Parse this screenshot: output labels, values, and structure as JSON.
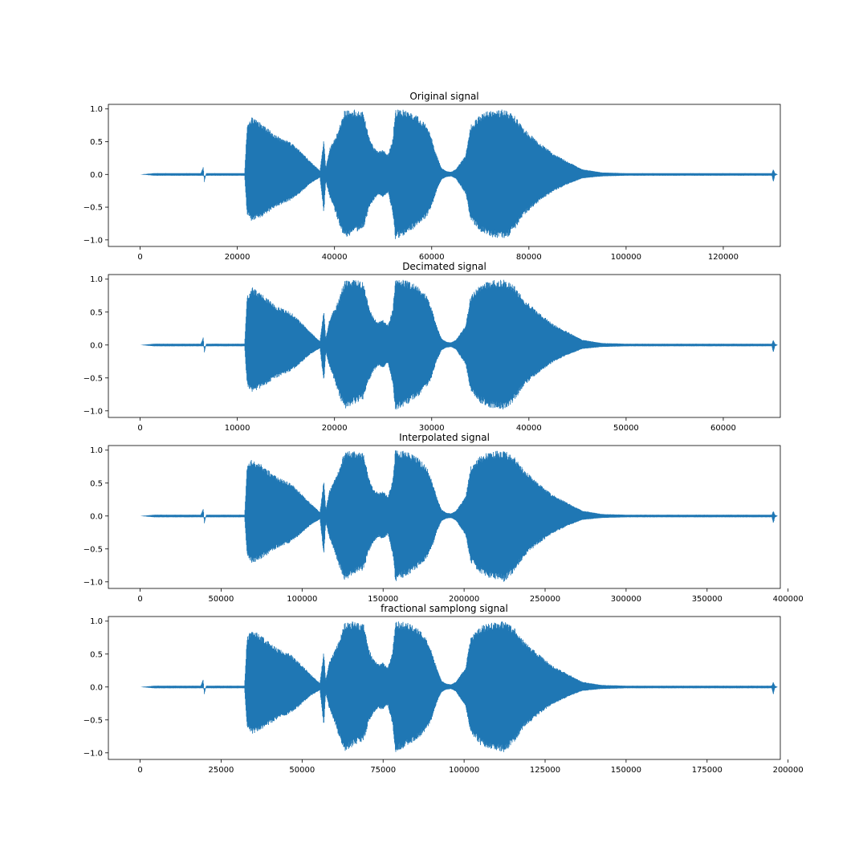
{
  "figure": {
    "background": "#ffffff"
  },
  "chart_data": [
    {
      "type": "line",
      "title": "Original signal",
      "xlabel": "",
      "ylabel": "",
      "xlim": [
        -6534,
        131734
      ],
      "ylim": [
        -1.1,
        1.07
      ],
      "xticks": [
        0,
        20000,
        40000,
        60000,
        80000,
        100000,
        120000
      ],
      "yticks": [
        -1.0,
        -0.5,
        0.0,
        0.5,
        1.0
      ],
      "ytick_labels": [
        "−1.0",
        "−0.5",
        "0.0",
        "0.5",
        "1.0"
      ],
      "grid": false,
      "series": [
        {
          "color": "#1f77b4",
          "x_max": 131200,
          "envelope": [
            [
              0,
              0.0
            ],
            [
              3000,
              0.02
            ],
            [
              12500,
              0.02
            ],
            [
              13000,
              0.12
            ],
            [
              13200,
              -0.12
            ],
            [
              13600,
              0.02
            ],
            [
              21500,
              0.02
            ],
            [
              22000,
              0.75
            ],
            [
              23000,
              0.88
            ],
            [
              25000,
              0.78
            ],
            [
              28000,
              0.6
            ],
            [
              31000,
              0.5
            ],
            [
              33000,
              0.36
            ],
            [
              35000,
              0.2
            ],
            [
              37000,
              0.06
            ],
            [
              37800,
              0.55
            ],
            [
              38200,
              0.1
            ],
            [
              39000,
              0.4
            ],
            [
              40000,
              0.55
            ],
            [
              41000,
              0.72
            ],
            [
              42000,
              0.98
            ],
            [
              44000,
              1.0
            ],
            [
              46000,
              0.95
            ],
            [
              47000,
              0.6
            ],
            [
              48000,
              0.42
            ],
            [
              49000,
              0.35
            ],
            [
              50000,
              0.38
            ],
            [
              51000,
              0.3
            ],
            [
              52000,
              0.55
            ],
            [
              52500,
              1.0
            ],
            [
              55000,
              0.98
            ],
            [
              57000,
              0.9
            ],
            [
              59000,
              0.75
            ],
            [
              60000,
              0.55
            ],
            [
              61000,
              0.3
            ],
            [
              62000,
              0.1
            ],
            [
              63000,
              0.05
            ],
            [
              64000,
              0.04
            ],
            [
              65000,
              0.08
            ],
            [
              67000,
              0.3
            ],
            [
              68000,
              0.75
            ],
            [
              70000,
              0.92
            ],
            [
              72000,
              0.98
            ],
            [
              75000,
              1.0
            ],
            [
              77000,
              0.9
            ],
            [
              79000,
              0.7
            ],
            [
              82000,
              0.5
            ],
            [
              85000,
              0.32
            ],
            [
              88000,
              0.2
            ],
            [
              91000,
              0.08
            ],
            [
              95000,
              0.03
            ],
            [
              100000,
              0.02
            ],
            [
              125000,
              0.02
            ],
            [
              130000,
              0.02
            ],
            [
              130300,
              0.08
            ],
            [
              130600,
              0.02
            ],
            [
              131200,
              0.0
            ]
          ],
          "lower_envelope": [
            [
              0,
              0.0
            ],
            [
              3000,
              -0.02
            ],
            [
              21500,
              -0.02
            ],
            [
              22000,
              -0.62
            ],
            [
              23000,
              -0.72
            ],
            [
              25000,
              -0.65
            ],
            [
              28000,
              -0.5
            ],
            [
              31000,
              -0.4
            ],
            [
              33000,
              -0.28
            ],
            [
              35000,
              -0.14
            ],
            [
              37000,
              -0.05
            ],
            [
              37800,
              -0.6
            ],
            [
              38200,
              -0.1
            ],
            [
              39000,
              -0.35
            ],
            [
              40000,
              -0.55
            ],
            [
              41000,
              -0.78
            ],
            [
              42000,
              -0.98
            ],
            [
              44000,
              -0.9
            ],
            [
              46000,
              -0.82
            ],
            [
              47000,
              -0.55
            ],
            [
              48000,
              -0.4
            ],
            [
              49000,
              -0.32
            ],
            [
              50000,
              -0.35
            ],
            [
              51000,
              -0.28
            ],
            [
              52000,
              -0.6
            ],
            [
              52500,
              -1.0
            ],
            [
              55000,
              -0.9
            ],
            [
              57000,
              -0.8
            ],
            [
              59000,
              -0.65
            ],
            [
              60000,
              -0.5
            ],
            [
              61000,
              -0.25
            ],
            [
              62000,
              -0.08
            ],
            [
              63000,
              -0.04
            ],
            [
              64000,
              -0.03
            ],
            [
              65000,
              -0.07
            ],
            [
              67000,
              -0.3
            ],
            [
              68000,
              -0.7
            ],
            [
              70000,
              -0.88
            ],
            [
              72000,
              -0.95
            ],
            [
              75000,
              -1.0
            ],
            [
              77000,
              -0.85
            ],
            [
              79000,
              -0.62
            ],
            [
              82000,
              -0.42
            ],
            [
              85000,
              -0.26
            ],
            [
              88000,
              -0.15
            ],
            [
              91000,
              -0.06
            ],
            [
              95000,
              -0.03
            ],
            [
              100000,
              -0.02
            ],
            [
              130000,
              -0.02
            ],
            [
              130300,
              -0.12
            ],
            [
              130600,
              -0.02
            ],
            [
              131200,
              0.0
            ]
          ]
        }
      ]
    },
    {
      "type": "line",
      "title": "Decimated signal",
      "xlabel": "",
      "ylabel": "",
      "xlim": [
        -3267,
        65867
      ],
      "ylim": [
        -1.1,
        1.07
      ],
      "xticks": [
        0,
        10000,
        20000,
        30000,
        40000,
        50000,
        60000
      ],
      "yticks": [
        -1.0,
        -0.5,
        0.0,
        0.5,
        1.0
      ],
      "ytick_labels": [
        "−1.0",
        "−0.5",
        "0.0",
        "0.5",
        "1.0"
      ],
      "grid": false,
      "series": [
        {
          "color": "#1f77b4",
          "x_max": 65600
        }
      ]
    },
    {
      "type": "line",
      "title": "Interpolated signal",
      "xlabel": "",
      "ylabel": "",
      "xlim": [
        -19602,
        395202
      ],
      "ylim": [
        -1.1,
        1.07
      ],
      "xticks": [
        0,
        50000,
        100000,
        150000,
        200000,
        250000,
        300000,
        350000,
        400000
      ],
      "yticks": [
        -1.0,
        -0.5,
        0.0,
        0.5,
        1.0
      ],
      "ytick_labels": [
        "−1.0",
        "−0.5",
        "0.0",
        "0.5",
        "1.0"
      ],
      "grid": false,
      "series": [
        {
          "color": "#1f77b4",
          "x_max": 393600
        }
      ]
    },
    {
      "type": "line",
      "title": "fractional samplong signal",
      "xlabel": "",
      "ylabel": "",
      "xlim": [
        -9800,
        197600
      ],
      "ylim": [
        -1.1,
        1.07
      ],
      "xticks": [
        0,
        25000,
        50000,
        75000,
        100000,
        125000,
        150000,
        175000,
        200000
      ],
      "yticks": [
        -1.0,
        -0.5,
        0.0,
        0.5,
        1.0
      ],
      "ytick_labels": [
        "−1.0",
        "−0.5",
        "0.0",
        "0.5",
        "1.0"
      ],
      "grid": false,
      "series": [
        {
          "color": "#1f77b4",
          "x_max": 196800
        }
      ]
    }
  ]
}
